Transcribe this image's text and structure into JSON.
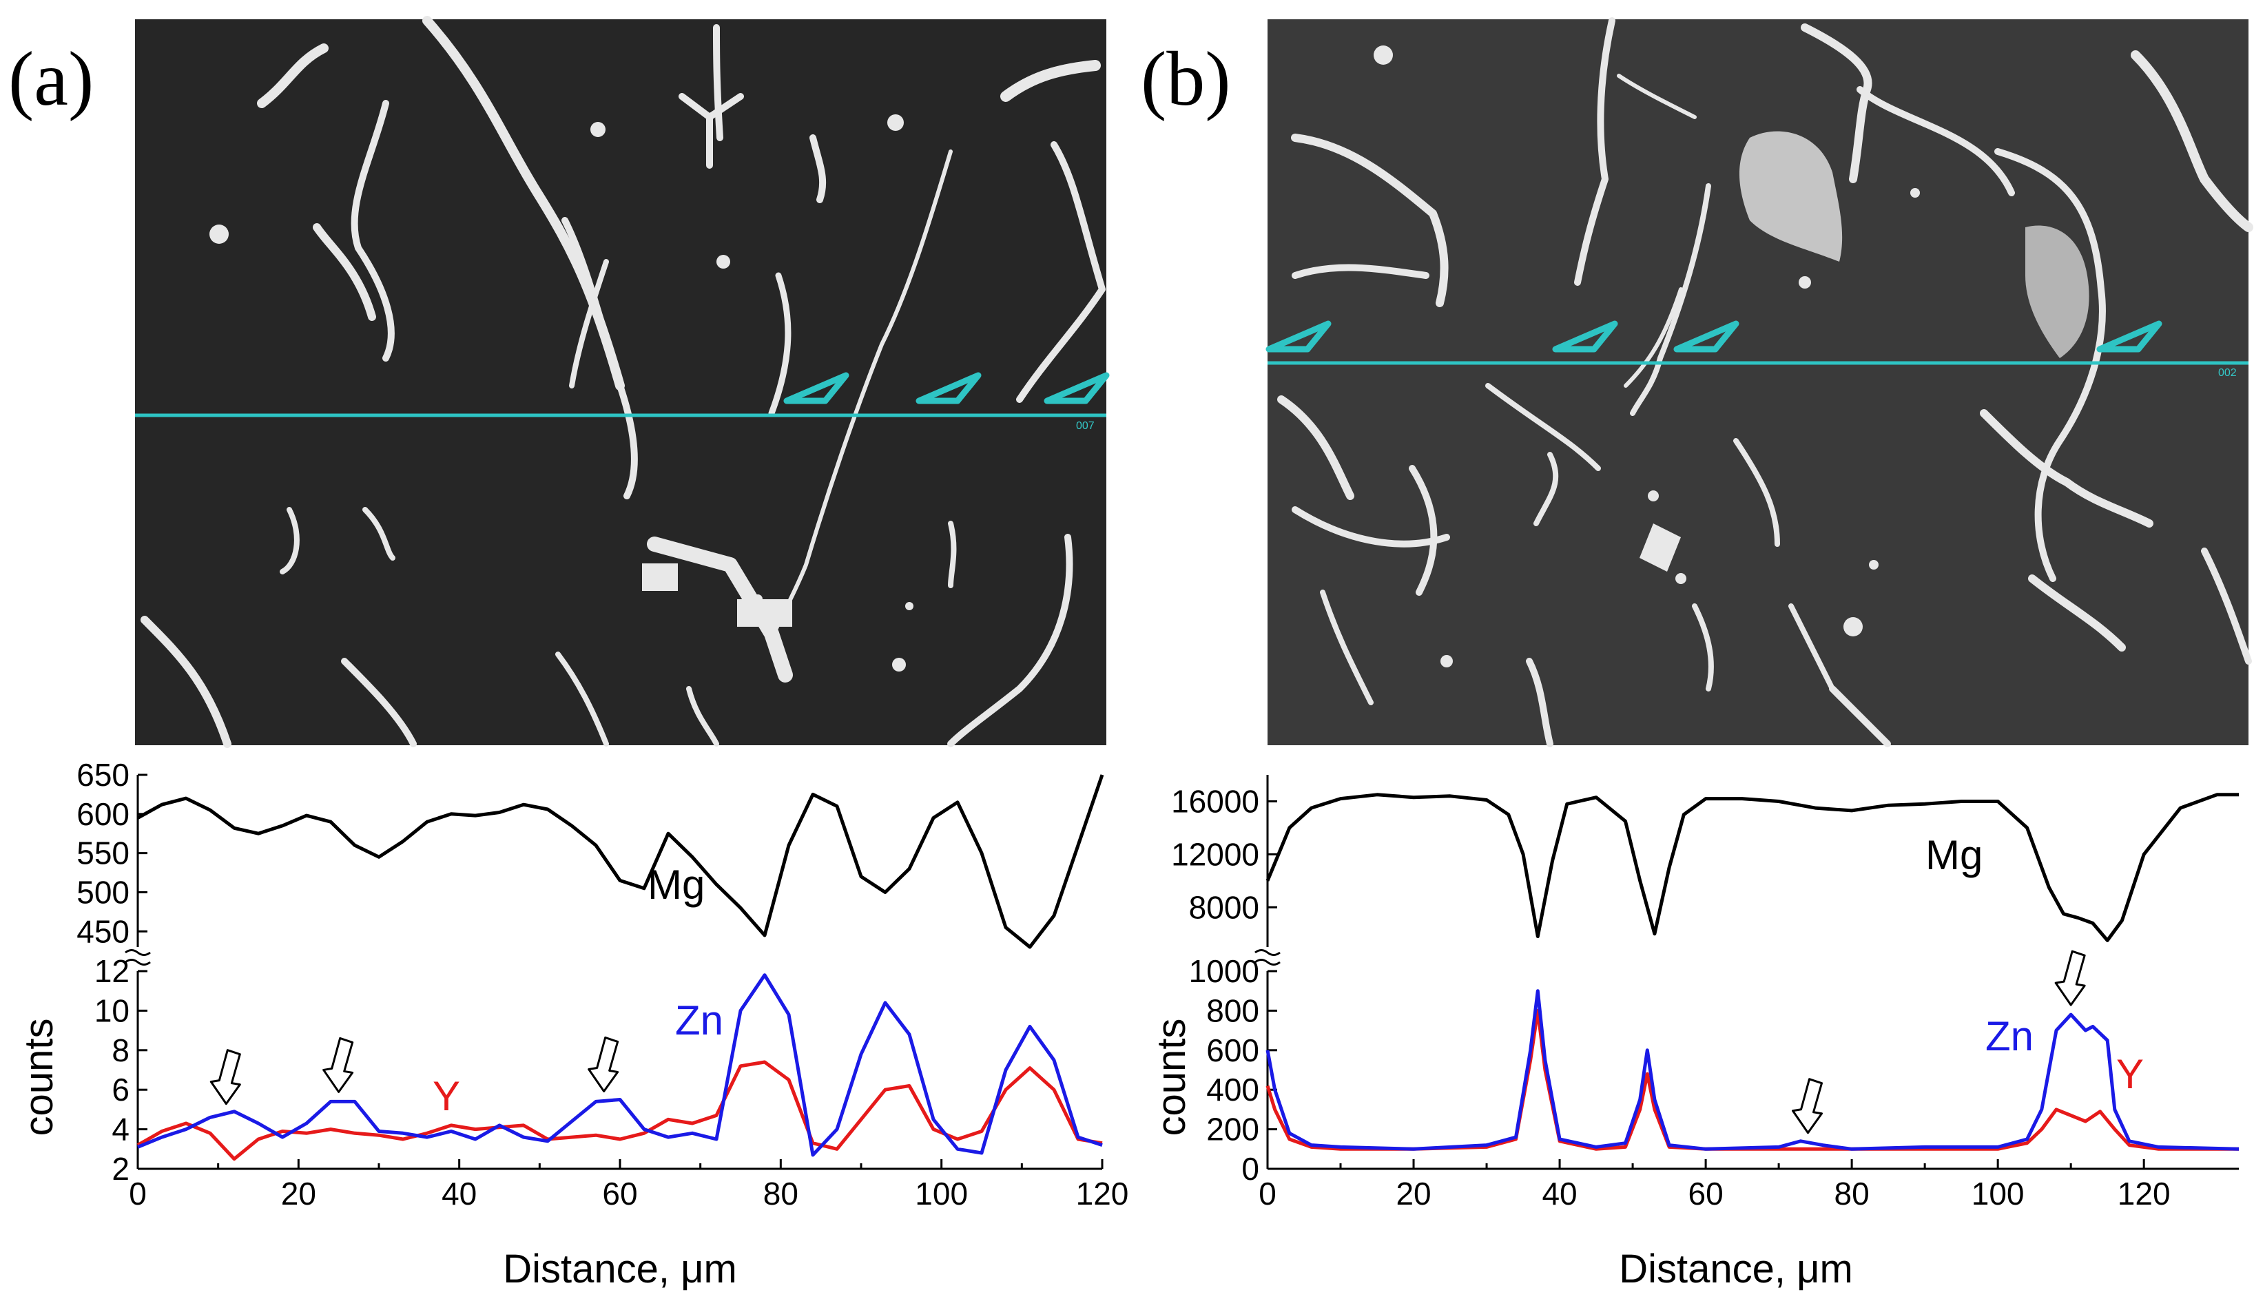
{
  "colors": {
    "mg": "#000000",
    "zn": "#1a1ae6",
    "y": "#e61a1a",
    "marker": "#2ec4c4",
    "micrograph_bg_a": "#262626",
    "micrograph_bg_b": "#3a3a3a",
    "phase": "#e8e8e8"
  },
  "chart_data": [
    {
      "panel": "(a)",
      "type": "line",
      "micrograph": {
        "scale_text": "007",
        "arrow_count": 3
      },
      "xlabel": "Distance, μm",
      "ylabel": "counts",
      "xlim": [
        0,
        120
      ],
      "xticks": [
        0,
        20,
        40,
        60,
        80,
        100,
        120
      ],
      "upper": {
        "ylim": [
          430,
          650
        ],
        "yticks": [
          450,
          500,
          550,
          600,
          650
        ],
        "series": [
          {
            "name": "Mg",
            "x": [
              0,
              3,
              6,
              9,
              12,
              15,
              18,
              21,
              24,
              27,
              30,
              33,
              36,
              39,
              42,
              45,
              48,
              51,
              54,
              57,
              60,
              63,
              66,
              69,
              72,
              75,
              78,
              81,
              84,
              87,
              90,
              93,
              96,
              99,
              102,
              105,
              108,
              111,
              114,
              117,
              120
            ],
            "values": [
              595,
              612,
              620,
              605,
              582,
              575,
              585,
              598,
              590,
              560,
              545,
              565,
              590,
              600,
              598,
              602,
              612,
              606,
              585,
              560,
              515,
              505,
              575,
              545,
              510,
              480,
              445,
              560,
              625,
              610,
              520,
              500,
              530,
              595,
              615,
              550,
              455,
              430,
              470,
              560,
              650
            ]
          }
        ]
      },
      "lower": {
        "ylim": [
          2,
          12
        ],
        "yticks": [
          2,
          4,
          6,
          8,
          10,
          12
        ],
        "series": [
          {
            "name": "Zn",
            "x": [
              0,
              3,
              6,
              9,
              12,
              15,
              18,
              21,
              24,
              27,
              30,
              33,
              36,
              39,
              42,
              45,
              48,
              51,
              54,
              57,
              60,
              63,
              66,
              69,
              72,
              75,
              78,
              81,
              84,
              87,
              90,
              93,
              96,
              99,
              102,
              105,
              108,
              111,
              114,
              117,
              120
            ],
            "values": [
              3.1,
              3.6,
              4.0,
              4.6,
              4.9,
              4.3,
              3.6,
              4.3,
              5.4,
              5.4,
              3.9,
              3.8,
              3.6,
              3.9,
              3.5,
              4.2,
              3.6,
              3.4,
              4.4,
              5.4,
              5.5,
              4.0,
              3.6,
              3.8,
              3.5,
              10.0,
              11.8,
              9.8,
              2.7,
              4.0,
              7.8,
              10.4,
              8.8,
              4.5,
              3.0,
              2.8,
              7.0,
              9.2,
              7.5,
              3.6,
              3.2
            ]
          },
          {
            "name": "Y",
            "x": [
              0,
              3,
              6,
              9,
              12,
              15,
              18,
              21,
              24,
              27,
              30,
              33,
              36,
              39,
              42,
              45,
              48,
              51,
              54,
              57,
              60,
              63,
              66,
              69,
              72,
              75,
              78,
              81,
              84,
              87,
              90,
              93,
              96,
              99,
              102,
              105,
              108,
              111,
              114,
              117,
              120
            ],
            "values": [
              3.2,
              3.9,
              4.3,
              3.8,
              2.5,
              3.5,
              3.9,
              3.8,
              4.0,
              3.8,
              3.7,
              3.5,
              3.8,
              4.2,
              4.0,
              4.1,
              4.2,
              3.5,
              3.6,
              3.7,
              3.5,
              3.8,
              4.5,
              4.3,
              4.7,
              7.2,
              7.4,
              6.5,
              3.3,
              3.0,
              4.5,
              6.0,
              6.2,
              4.0,
              3.5,
              3.9,
              6.0,
              7.1,
              6.0,
              3.5,
              3.3
            ]
          }
        ]
      },
      "labels": {
        "mg": "Mg",
        "zn": "Zn",
        "y": "Y"
      },
      "annotations": {
        "open_arrows_at_x": [
          11,
          25,
          58
        ]
      }
    },
    {
      "panel": "(b)",
      "type": "line",
      "micrograph": {
        "scale_text": "002",
        "arrow_count": 4
      },
      "xlabel": "Distance, μm",
      "ylabel": "counts",
      "xlim": [
        0,
        133
      ],
      "xticks": [
        0,
        20,
        40,
        60,
        80,
        100,
        120
      ],
      "upper": {
        "ylim": [
          5000,
          18000
        ],
        "yticks": [
          8000,
          12000,
          16000
        ],
        "series": [
          {
            "name": "Mg",
            "x": [
              0,
              3,
              6,
              10,
              15,
              20,
              25,
              30,
              33,
              35,
              37,
              39,
              41,
              45,
              49,
              51,
              53,
              55,
              57,
              60,
              65,
              70,
              75,
              80,
              85,
              90,
              95,
              100,
              104,
              107,
              109,
              111,
              113,
              115,
              117,
              120,
              125,
              130,
              133
            ],
            "values": [
              10000,
              14000,
              15500,
              16200,
              16500,
              16300,
              16400,
              16100,
              15000,
              12000,
              5800,
              11500,
              15800,
              16300,
              14500,
              10000,
              6000,
              11000,
              15000,
              16200,
              16200,
              16000,
              15500,
              15300,
              15700,
              15800,
              16000,
              16000,
              14000,
              9500,
              7500,
              7200,
              6800,
              5500,
              7000,
              12000,
              15500,
              16500,
              16500
            ]
          }
        ]
      },
      "lower": {
        "ylim": [
          0,
          1000
        ],
        "yticks": [
          0,
          200,
          400,
          600,
          800,
          1000
        ],
        "series": [
          {
            "name": "Zn",
            "x": [
              0,
              1,
              3,
              6,
              10,
              20,
              30,
              34,
              36,
              37,
              38,
              40,
              45,
              49,
              51,
              52,
              53,
              55,
              60,
              70,
              73,
              76,
              80,
              90,
              100,
              104,
              106,
              108,
              110,
              112,
              113,
              115,
              116,
              118,
              122,
              133
            ],
            "values": [
              600,
              400,
              180,
              120,
              110,
              100,
              120,
              160,
              600,
              900,
              550,
              150,
              110,
              130,
              350,
              600,
              350,
              120,
              100,
              110,
              140,
              120,
              100,
              110,
              110,
              150,
              300,
              700,
              780,
              700,
              720,
              650,
              300,
              140,
              110,
              100
            ]
          },
          {
            "name": "Y",
            "x": [
              0,
              1,
              3,
              6,
              10,
              20,
              30,
              34,
              36,
              37,
              38,
              40,
              45,
              49,
              51,
              52,
              53,
              55,
              60,
              70,
              73,
              76,
              80,
              90,
              100,
              104,
              106,
              108,
              110,
              112,
              114,
              116,
              118,
              122,
              133
            ],
            "values": [
              420,
              300,
              150,
              110,
              100,
              100,
              110,
              150,
              550,
              800,
              500,
              140,
              100,
              110,
              300,
              480,
              300,
              110,
              100,
              100,
              100,
              100,
              100,
              100,
              100,
              130,
              200,
              300,
              270,
              240,
              290,
              200,
              120,
              100,
              100
            ]
          }
        ]
      },
      "labels": {
        "mg": "Mg",
        "zn": "Zn",
        "y": "Y"
      },
      "annotations": {
        "open_arrows_at_x": [
          74,
          110
        ]
      }
    }
  ]
}
